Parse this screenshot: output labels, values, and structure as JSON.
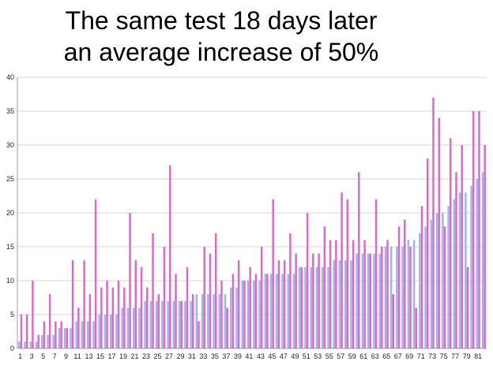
{
  "title_line1": "The same test 18 days later",
  "title_line2": "an average increase of 50%",
  "chart_data": {
    "type": "bar",
    "ylim": [
      0,
      40
    ],
    "yticks": [
      0,
      5,
      10,
      15,
      20,
      25,
      30,
      35,
      40
    ],
    "grid": true,
    "categories": [
      1,
      2,
      3,
      4,
      5,
      6,
      7,
      8,
      9,
      10,
      11,
      12,
      13,
      14,
      15,
      16,
      17,
      18,
      19,
      20,
      21,
      22,
      23,
      24,
      25,
      26,
      27,
      28,
      29,
      30,
      31,
      32,
      33,
      34,
      35,
      36,
      37,
      38,
      39,
      40,
      41,
      42,
      43,
      44,
      45,
      46,
      47,
      48,
      49,
      50,
      51,
      52,
      53,
      54,
      55,
      56,
      57,
      58,
      59,
      60,
      61,
      62,
      63,
      64,
      65,
      66,
      67,
      68,
      69,
      70,
      71,
      72,
      73,
      74,
      75,
      76,
      77,
      78,
      79,
      80,
      81,
      82
    ],
    "xtick_labels": [
      "1",
      "3",
      "5",
      "7",
      "9",
      "11",
      "13",
      "15",
      "17",
      "19",
      "21",
      "23",
      "25",
      "27",
      "29",
      "31",
      "33",
      "35",
      "37",
      "39",
      "41",
      "43",
      "45",
      "47",
      "49",
      "51",
      "53",
      "55",
      "57",
      "59",
      "61",
      "63",
      "65",
      "67",
      "69",
      "71",
      "73",
      "75",
      "77",
      "79",
      "81"
    ],
    "series": [
      {
        "color": "#9fb4ee",
        "values": [
          1,
          1,
          1,
          1,
          2,
          2,
          2,
          3,
          3,
          3,
          4,
          4,
          4,
          4,
          5,
          5,
          5,
          5,
          6,
          6,
          6,
          6,
          7,
          7,
          7,
          7,
          7,
          7,
          7,
          7,
          7,
          8,
          8,
          8,
          8,
          8,
          8,
          9,
          9,
          10,
          10,
          10,
          10,
          11,
          11,
          11,
          11,
          11,
          11,
          12,
          12,
          12,
          12,
          12,
          12,
          13,
          13,
          13,
          13,
          14,
          14,
          14,
          14,
          14,
          15,
          15,
          15,
          15,
          16,
          16,
          17,
          18,
          19,
          20,
          20,
          21,
          22,
          23,
          23,
          24,
          25,
          26
        ]
      },
      {
        "color": "#e066c8",
        "values": [
          5,
          5,
          10,
          2,
          4,
          8,
          4,
          4,
          3,
          13,
          6,
          13,
          8,
          22,
          9,
          10,
          9,
          10,
          9,
          20,
          13,
          12,
          9,
          17,
          8,
          15,
          27,
          11,
          7,
          12,
          8,
          4,
          15,
          14,
          17,
          10,
          6,
          11,
          13,
          10,
          12,
          11,
          15,
          11,
          22,
          13,
          13,
          17,
          14,
          12,
          20,
          14,
          14,
          18,
          16,
          16,
          23,
          22,
          16,
          26,
          16,
          14,
          22,
          15,
          16,
          8,
          18,
          19,
          15,
          6,
          21,
          28,
          37,
          34,
          18,
          31,
          26,
          30,
          12,
          35,
          35,
          30
        ]
      }
    ]
  }
}
